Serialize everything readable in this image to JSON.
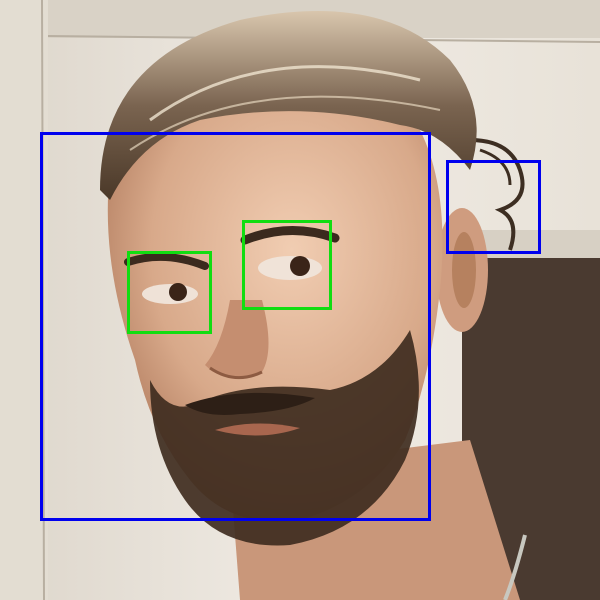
{
  "photo": {
    "subject": "",
    "palette": {
      "wall": "#ece7df",
      "wall_shadow": "#c9c2b6",
      "doorway": "#4a3a30",
      "skin": "#d8a98a",
      "skin_shadow": "#b07a5c",
      "hair": "#5a4636",
      "beard": "#3a2a20",
      "chain": "#c8c8c0"
    }
  },
  "detections": {
    "face_color": "#0000ee",
    "eye_color": "#11dd11",
    "items": [
      {
        "name": "face-detection-box",
        "kind": "face"
      },
      {
        "name": "ear-detection-box",
        "kind": "face"
      },
      {
        "name": "eye-detection-box-left",
        "kind": "eye"
      },
      {
        "name": "eye-detection-box-right",
        "kind": "eye"
      }
    ]
  }
}
